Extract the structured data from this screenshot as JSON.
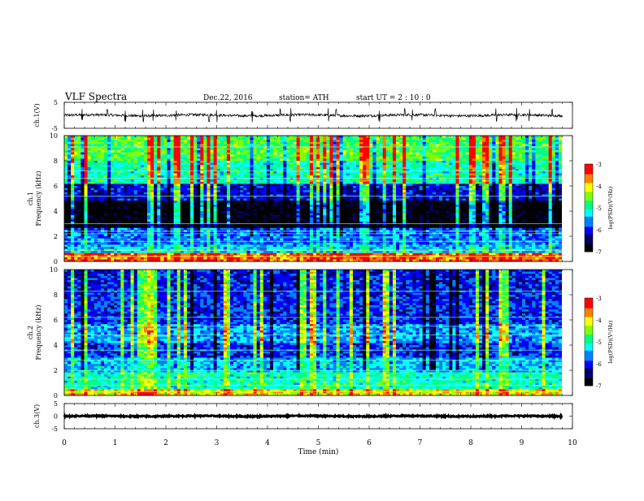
{
  "header": {
    "title": "VLF  Spectra",
    "date": "Dec.22, 2016",
    "station": "station= ATH",
    "start_ut": "start  UT  =   2  : 10 : 0"
  },
  "colors": {
    "colormap": [
      "#000000",
      "#000066",
      "#0000ff",
      "#0080ff",
      "#00ffff",
      "#00ff80",
      "#80ff00",
      "#ffff00",
      "#ff8000",
      "#ff0000",
      "#ffffff"
    ]
  },
  "chart_data": [
    {
      "type": "line",
      "name": "ch1-waveform",
      "ylabel": "ch.1(V)",
      "ylim": [
        -5,
        5
      ],
      "yticks": [
        "5",
        "-5"
      ],
      "xlim": [
        0,
        10
      ],
      "baseline": 0,
      "noise_level": 0.5,
      "spikes": [
        0.35,
        0.85,
        1.2,
        1.55,
        1.75,
        2.2,
        2.85,
        3.0,
        3.7,
        4.25,
        4.45,
        5.2,
        5.35,
        6.2,
        6.7,
        6.85,
        7.3,
        8.5,
        8.9,
        9.15,
        9.6
      ]
    },
    {
      "type": "heatmap",
      "name": "ch1-spectrogram",
      "ylabel": "ch.1\nFrequency  (kHz)",
      "ylim": [
        0,
        10
      ],
      "yticks": [
        "0",
        "2",
        "4",
        "6",
        "8",
        "10"
      ],
      "xlim": [
        0,
        9.8
      ],
      "colorbar": {
        "label": "log(PSD)(V²/Hz)",
        "range": [
          -7,
          -3
        ],
        "ticks": [
          "-3",
          "-4",
          "-5",
          "-6",
          "-7"
        ]
      },
      "bands": [
        {
          "from": 0,
          "to": 0.6,
          "level": -3.5
        },
        {
          "from": 0.6,
          "to": 1.4,
          "level": -5.4
        },
        {
          "from": 1.4,
          "to": 2.6,
          "level": -5.7
        },
        {
          "from": 2.6,
          "to": 4.8,
          "level": -6.9
        },
        {
          "from": 4.8,
          "to": 6.2,
          "level": -6.1
        },
        {
          "from": 6.2,
          "to": 8.0,
          "level": -5.0
        },
        {
          "from": 8.0,
          "to": 10,
          "level": -4.6
        }
      ],
      "lines_khz": [
        0.4,
        0.9,
        1.6,
        2.2,
        2.4,
        3.0,
        5.2,
        6.6,
        7.2,
        9.1
      ]
    },
    {
      "type": "heatmap",
      "name": "ch2-spectrogram",
      "ylabel": "ch.2\nFrequency  (kHz)",
      "ylim": [
        0,
        10
      ],
      "yticks": [
        "0",
        "2",
        "4",
        "6",
        "8",
        "10"
      ],
      "xlim": [
        0,
        9.8
      ],
      "colorbar": {
        "label": "log(PSD)(V²/Hz)",
        "range": [
          -7,
          -3
        ],
        "ticks": [
          "-3",
          "-4",
          "-5",
          "-6",
          "-7"
        ]
      },
      "bands": [
        {
          "from": 0,
          "to": 0.5,
          "level": -4.0
        },
        {
          "from": 0.5,
          "to": 1.8,
          "level": -5.0
        },
        {
          "from": 1.8,
          "to": 3.0,
          "level": -5.4
        },
        {
          "from": 3.0,
          "to": 4.2,
          "level": -5.9
        },
        {
          "from": 4.2,
          "to": 5.6,
          "level": -5.5
        },
        {
          "from": 5.6,
          "to": 8.0,
          "level": -5.9
        },
        {
          "from": 8.0,
          "to": 10,
          "level": -6.0
        }
      ],
      "lines_khz": [
        0.3,
        0.8,
        1.3,
        2.0,
        2.8,
        3.6,
        4.8,
        5.5,
        6.2,
        8.3
      ]
    },
    {
      "type": "line",
      "name": "ch3-waveform",
      "ylabel": "ch.3(V)",
      "ylim": [
        -5,
        5
      ],
      "yticks": [
        "5",
        "0",
        "-5"
      ],
      "xlim": [
        0,
        10
      ],
      "baseline": 0,
      "noise_level": 0.25,
      "spikes": []
    }
  ],
  "x_axis": {
    "label": "Time  (min)",
    "ticks": [
      "0",
      "1",
      "2",
      "3",
      "4",
      "5",
      "6",
      "7",
      "8",
      "9",
      "10"
    ],
    "range": [
      0,
      10
    ]
  }
}
